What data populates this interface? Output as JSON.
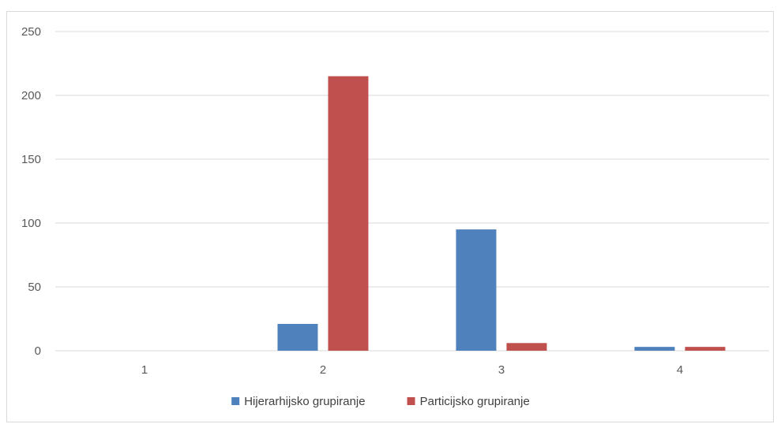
{
  "chart_data": {
    "type": "bar",
    "categories": [
      "1",
      "2",
      "3",
      "4"
    ],
    "series": [
      {
        "name": "Hijerarhijsko grupiranje",
        "values": [
          0,
          21,
          95,
          3
        ],
        "color": "#4f81bd"
      },
      {
        "name": "Particijsko grupiranje",
        "values": [
          0,
          215,
          6,
          3
        ],
        "color": "#c0504d"
      }
    ],
    "title": "",
    "xlabel": "",
    "ylabel": "",
    "ylim": [
      0,
      250
    ],
    "yticks": [
      0,
      50,
      100,
      150,
      200,
      250
    ],
    "grid": true,
    "legend": "bottom"
  }
}
